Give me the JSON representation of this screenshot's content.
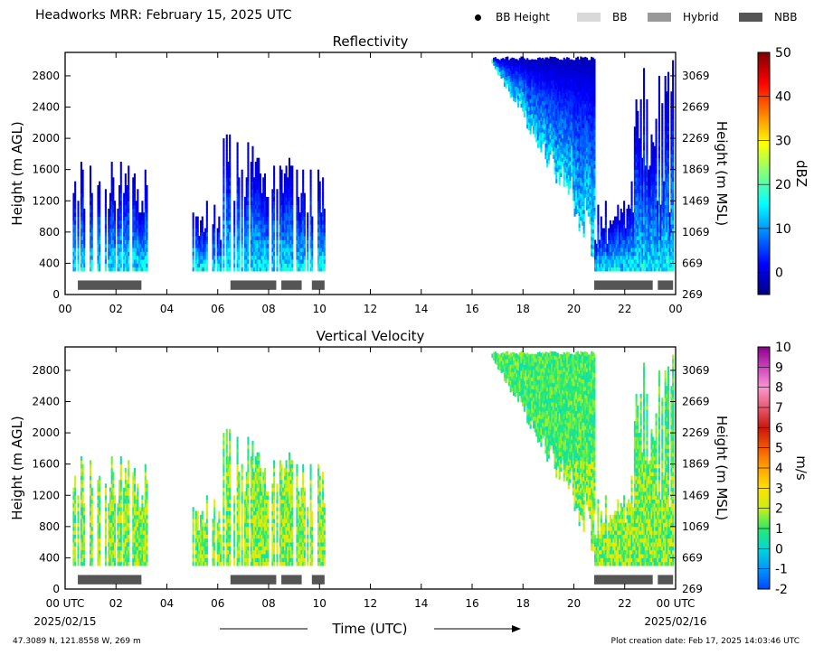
{
  "header": {
    "title": "Headworks MRR:  February 15, 2025 UTC",
    "legend": [
      {
        "label": "BB Height",
        "kind": "dot",
        "color": "#000000"
      },
      {
        "label": "BB",
        "kind": "bar",
        "color": "#d9d9d9"
      },
      {
        "label": "Hybrid",
        "kind": "bar",
        "color": "#999999"
      },
      {
        "label": "NBB",
        "kind": "bar",
        "color": "#555555"
      }
    ]
  },
  "footer": {
    "location": "47.3089 N, 121.8558 W, 269 m",
    "created": "Plot creation date: Feb 17, 2025 14:03:46 UTC"
  },
  "chart_data": [
    {
      "type": "heatmap",
      "title": "Reflectivity",
      "xlabel": "",
      "ylabel": "Height (m AGL)",
      "y2label": "Height (m MSL)",
      "xlim": [
        0,
        24
      ],
      "ylim": [
        0,
        3100
      ],
      "xticks": [
        "00",
        "02",
        "04",
        "06",
        "08",
        "10",
        "12",
        "14",
        "16",
        "18",
        "20",
        "22",
        "00"
      ],
      "yticks": [
        0,
        400,
        800,
        1200,
        1600,
        2000,
        2400,
        2800
      ],
      "y2ticks": [
        269,
        669,
        1069,
        1469,
        1869,
        2269,
        2669,
        3069
      ],
      "colorbar": {
        "label": "dBZ",
        "min": -5,
        "max": 50,
        "ticks": [
          0,
          10,
          20,
          30,
          40,
          50
        ]
      },
      "precip_periods": [
        {
          "start": 0.3,
          "end": 3.2,
          "top": 1700
        },
        {
          "start": 5.0,
          "end": 6.2,
          "top": 1200
        },
        {
          "start": 6.2,
          "end": 8.3,
          "top": 2100
        },
        {
          "start": 8.3,
          "end": 9.5,
          "top": 1800
        },
        {
          "start": 9.5,
          "end": 10.2,
          "top": 1600
        },
        {
          "start": 16.7,
          "end": 20.8,
          "top": 3000
        },
        {
          "start": 20.8,
          "end": 23.9,
          "top": 3000
        }
      ],
      "bright_band": [
        {
          "start": 0.5,
          "end": 3.0,
          "class": "NBB"
        },
        {
          "start": 6.5,
          "end": 8.3,
          "class": "NBB"
        },
        {
          "start": 8.5,
          "end": 9.3,
          "class": "NBB"
        },
        {
          "start": 9.7,
          "end": 10.2,
          "class": "NBB"
        },
        {
          "start": 20.8,
          "end": 23.1,
          "class": "NBB"
        },
        {
          "start": 23.3,
          "end": 23.9,
          "class": "NBB"
        }
      ]
    },
    {
      "type": "heatmap",
      "title": "Vertical Velocity",
      "xlabel": "Time (UTC)",
      "ylabel": "Height (m AGL)",
      "y2label": "Height (m MSL)",
      "xlim": [
        0,
        24
      ],
      "ylim": [
        0,
        3100
      ],
      "xticks": [
        "00 UTC",
        "02",
        "04",
        "06",
        "08",
        "10",
        "12",
        "14",
        "16",
        "18",
        "20",
        "22",
        "00 UTC"
      ],
      "xdates": [
        "2025/02/15",
        "2025/02/16"
      ],
      "yticks": [
        0,
        400,
        800,
        1200,
        1600,
        2000,
        2400,
        2800
      ],
      "y2ticks": [
        269,
        669,
        1069,
        1469,
        1869,
        2269,
        2669,
        3069
      ],
      "colorbar": {
        "label": "m/s",
        "min": -2,
        "max": 10,
        "ticks": [
          -2,
          -1,
          0,
          1,
          2,
          3,
          4,
          5,
          6,
          7,
          8,
          9,
          10
        ]
      },
      "bright_band": [
        {
          "start": 0.5,
          "end": 3.0,
          "class": "NBB"
        },
        {
          "start": 6.5,
          "end": 8.3,
          "class": "NBB"
        },
        {
          "start": 8.5,
          "end": 9.3,
          "class": "NBB"
        },
        {
          "start": 9.7,
          "end": 10.2,
          "class": "NBB"
        },
        {
          "start": 20.8,
          "end": 23.1,
          "class": "NBB"
        },
        {
          "start": 23.3,
          "end": 23.9,
          "class": "NBB"
        }
      ]
    }
  ]
}
